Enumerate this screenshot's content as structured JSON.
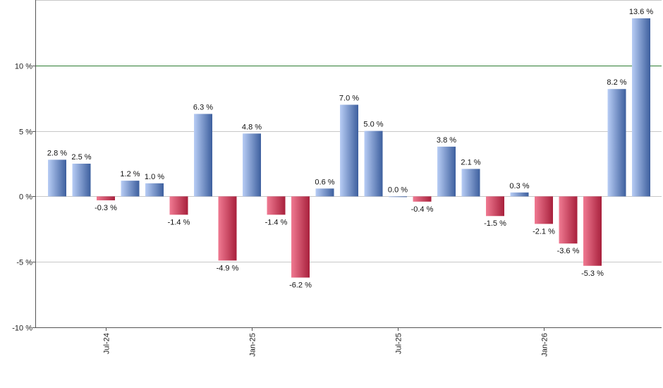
{
  "chart_data": {
    "type": "bar",
    "values": [
      2.8,
      2.5,
      -0.3,
      1.2,
      1.0,
      -1.4,
      6.3,
      -4.9,
      4.8,
      -1.4,
      -6.2,
      0.6,
      7.0,
      5.0,
      0.0,
      -0.4,
      3.8,
      2.1,
      -1.5,
      0.3,
      -2.1,
      -3.6,
      -5.3,
      8.2,
      13.6
    ],
    "value_labels": [
      "2.8 %",
      "2.5 %",
      "-0.3 %",
      "1.2 %",
      "1.0 %",
      "-1.4 %",
      "6.3 %",
      "-4.9 %",
      "4.8 %",
      "-1.4 %",
      "-6.2 %",
      "0.6 %",
      "7.0 %",
      "5.0 %",
      "0.0 %",
      "-0.4 %",
      "3.8 %",
      "2.1 %",
      "-1.5 %",
      "0.3 %",
      "-2.1 %",
      "-3.6 %",
      "-5.3 %",
      "8.2 %",
      "13.6 %"
    ],
    "ylim": [
      -10,
      15
    ],
    "y_ticks": [
      {
        "value": 10,
        "label": "10 %"
      },
      {
        "value": 5,
        "label": "5 %"
      },
      {
        "value": 0,
        "label": "0 %"
      },
      {
        "value": -5,
        "label": "-5 %"
      },
      {
        "value": -10,
        "label": "-10 %"
      }
    ],
    "x_ticks": [
      {
        "index": 2,
        "label": "Jul-24"
      },
      {
        "index": 8,
        "label": "Jan-25"
      },
      {
        "index": 14,
        "label": "Jul-25"
      },
      {
        "index": 20,
        "label": "Jan-26"
      }
    ],
    "reference_line": {
      "value": 10,
      "color": "#2e7d32"
    },
    "grid": true,
    "colors": {
      "positive_light": "#b8cdf5",
      "positive_dark": "#3d5f9e",
      "negative_light": "#f07a92",
      "negative_dark": "#a8203c",
      "grid": "#c8c8c8",
      "axis": "#555555"
    }
  }
}
